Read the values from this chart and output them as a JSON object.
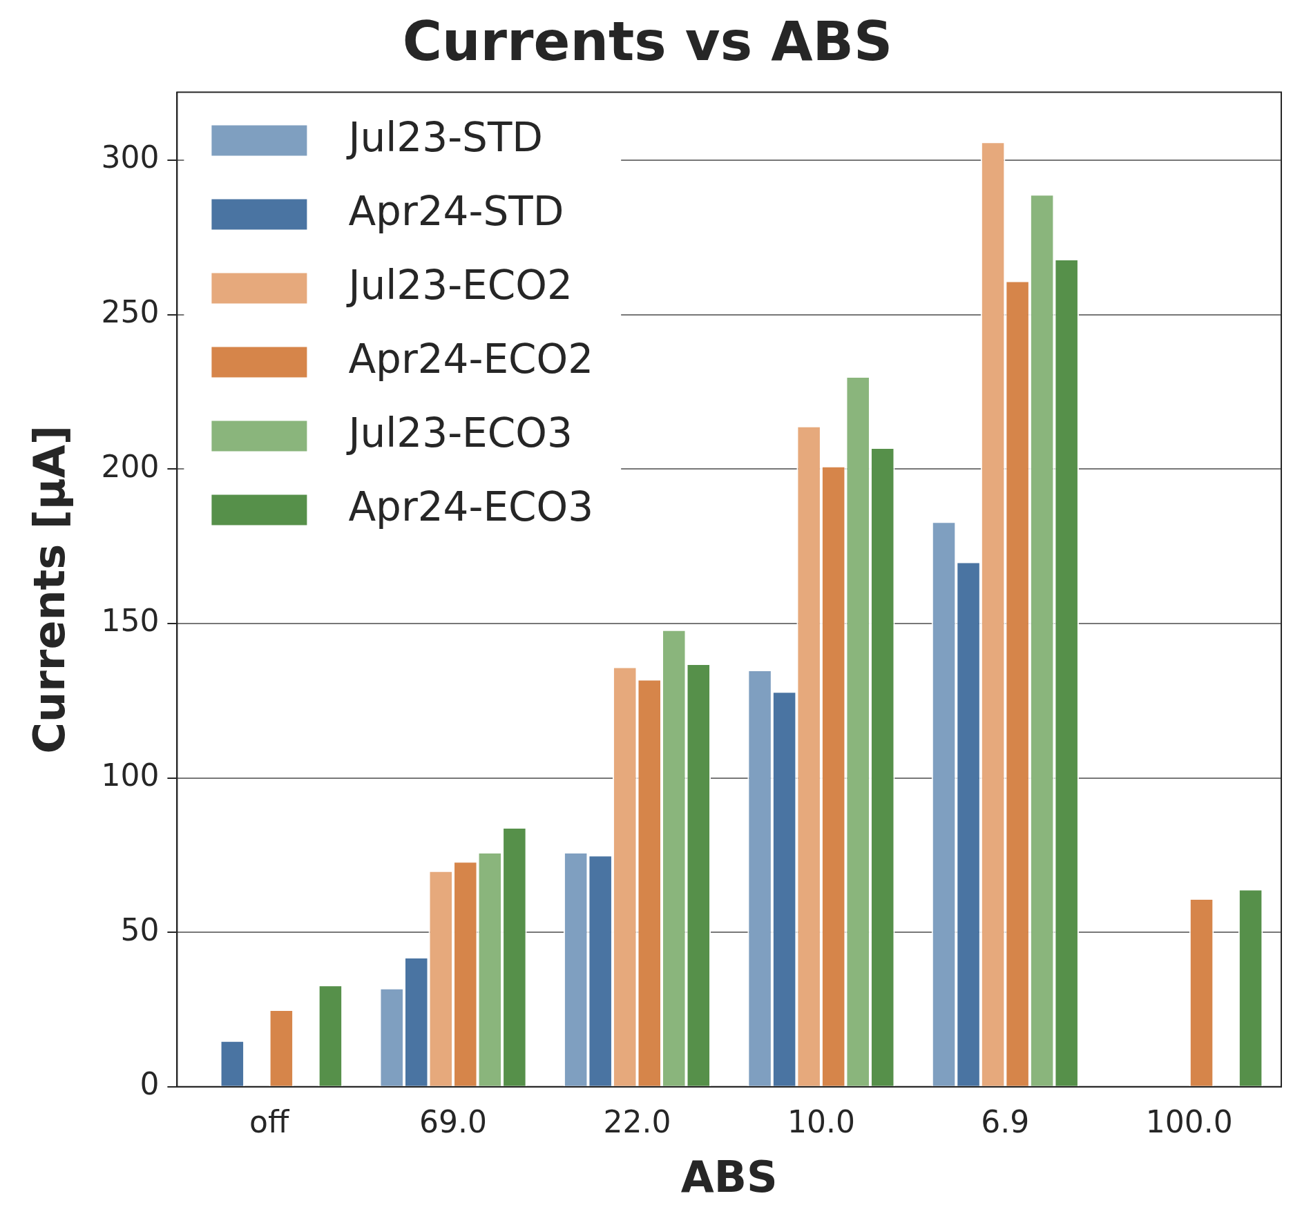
{
  "chart_data": {
    "type": "bar",
    "title": "Currents vs ABS",
    "xlabel": "ABS",
    "ylabel": "Currents [µA]",
    "categories": [
      "off",
      "69.0",
      "22.0",
      "10.0",
      "6.9",
      "100.0"
    ],
    "series": [
      {
        "name": "Jul23-STD",
        "color": "#7f9fc0",
        "values": [
          null,
          32,
          76,
          135,
          183,
          null
        ]
      },
      {
        "name": "Apr24-STD",
        "color": "#4a74a2",
        "values": [
          15,
          42,
          75,
          128,
          170,
          null
        ]
      },
      {
        "name": "Jul23-ECO2",
        "color": "#e6a97c",
        "values": [
          null,
          70,
          136,
          214,
          306,
          null
        ]
      },
      {
        "name": "Apr24-ECO2",
        "color": "#d6854a",
        "values": [
          25,
          73,
          132,
          201,
          261,
          61
        ]
      },
      {
        "name": "Jul23-ECO3",
        "color": "#8ab57c",
        "values": [
          null,
          76,
          148,
          230,
          289,
          null
        ]
      },
      {
        "name": "Apr24-ECO3",
        "color": "#56904a",
        "values": [
          33,
          84,
          137,
          207,
          268,
          64
        ]
      }
    ],
    "ylim": [
      0,
      322
    ],
    "yticks": [
      0,
      50,
      100,
      150,
      200,
      250,
      300
    ],
    "grid": "y",
    "legend": "top left"
  }
}
